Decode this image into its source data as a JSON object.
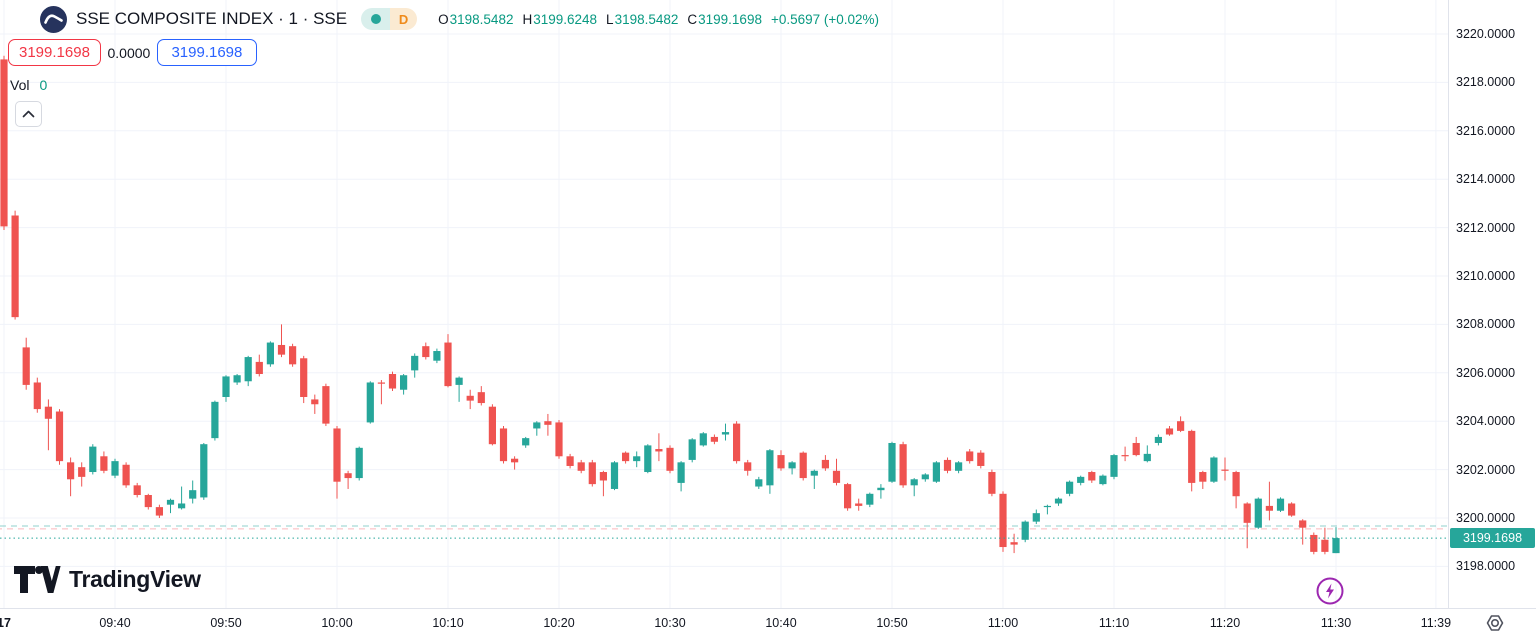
{
  "header": {
    "title": "SSE COMPOSITE INDEX · 1 · SSE",
    "market_status_dot": "open",
    "delayed_badge": "D",
    "ohlc": {
      "o_label": "O",
      "o": "3198.5482",
      "h_label": "H",
      "h": "3199.6248",
      "l_label": "L",
      "l": "3198.5482",
      "c_label": "C",
      "c": "3199.1698",
      "change": "+0.5697 (+0.02%)"
    }
  },
  "trade_panel": {
    "sell_price": "3199.1698",
    "spread": "0.0000",
    "buy_price": "3199.1698"
  },
  "volume": {
    "label": "Vol",
    "value": "0"
  },
  "brand": {
    "name": "TradingView"
  },
  "colors": {
    "up": "#26a69a",
    "down": "#ef5350",
    "text": "#131722",
    "grid": "#f0f3fa",
    "border": "#e0e3eb",
    "value_green": "#089981",
    "sell_red": "#f23645",
    "buy_blue": "#2962ff",
    "tag_bg": "#26a69a",
    "lightning_purple": "#9c27b0"
  },
  "price_axis_tag": "3199.1698",
  "chart_data": {
    "type": "candlestick",
    "symbol": "SSE COMPOSITE INDEX",
    "interval": "1",
    "exchange": "SSE",
    "start_time": "09:30",
    "minutes_per_candle": 1,
    "ylim": [
      3196.9,
      3221.4
    ],
    "grid": true,
    "price_ticks": [
      "3198.0000",
      "3200.0000",
      "3202.0000",
      "3204.0000",
      "3206.0000",
      "3208.0000",
      "3210.0000",
      "3212.0000",
      "3214.0000",
      "3216.0000",
      "3218.0000",
      "3220.0000"
    ],
    "price_tick_values": [
      3198,
      3200,
      3202,
      3204,
      3206,
      3208,
      3210,
      3212,
      3214,
      3216,
      3218,
      3220
    ],
    "time_ticks": [
      {
        "i": 0,
        "label": "17",
        "bold": true
      },
      {
        "i": 10,
        "label": "09:40"
      },
      {
        "i": 20,
        "label": "09:50"
      },
      {
        "i": 30,
        "label": "10:00"
      },
      {
        "i": 40,
        "label": "10:10"
      },
      {
        "i": 50,
        "label": "10:20"
      },
      {
        "i": 60,
        "label": "10:30"
      },
      {
        "i": 70,
        "label": "10:40"
      },
      {
        "i": 80,
        "label": "10:50"
      },
      {
        "i": 90,
        "label": "11:00"
      },
      {
        "i": 100,
        "label": "11:10"
      },
      {
        "i": 110,
        "label": "11:20"
      },
      {
        "i": 120,
        "label": "11:30"
      },
      {
        "i": 129,
        "label": "11:39"
      }
    ],
    "overlay_lines": [
      {
        "price": 3199.67,
        "style": "dashed",
        "color": "rgba(38,166,154,0.5)"
      },
      {
        "price": 3199.55,
        "style": "dashed",
        "color": "rgba(242,54,69,0.35)"
      },
      {
        "price": 3199.1698,
        "style": "dotted",
        "color": "#26a69a",
        "is_current": true
      }
    ],
    "current_price": 3199.1698,
    "candles": [
      [
        3218.95,
        3219.1,
        3211.9,
        3212.05
      ],
      [
        3212.5,
        3212.7,
        3208.2,
        3208.3
      ],
      [
        3207.05,
        3207.45,
        3205.3,
        3205.5
      ],
      [
        3205.6,
        3205.8,
        3204.35,
        3204.5
      ],
      [
        3204.6,
        3204.9,
        3202.8,
        3204.1
      ],
      [
        3204.4,
        3204.5,
        3202.2,
        3202.35
      ],
      [
        3202.3,
        3202.5,
        3200.9,
        3201.6
      ],
      [
        3202.1,
        3202.3,
        3201.3,
        3201.7
      ],
      [
        3201.9,
        3203.05,
        3201.8,
        3202.95
      ],
      [
        3202.55,
        3202.75,
        3201.85,
        3201.95
      ],
      [
        3201.75,
        3202.45,
        3201.65,
        3202.35
      ],
      [
        3202.2,
        3202.3,
        3201.25,
        3201.35
      ],
      [
        3201.35,
        3201.45,
        3200.85,
        3200.95
      ],
      [
        3200.95,
        3201.0,
        3200.35,
        3200.45
      ],
      [
        3200.45,
        3200.55,
        3200.0,
        3200.1
      ],
      [
        3200.55,
        3200.8,
        3200.2,
        3200.75
      ],
      [
        3200.4,
        3201.3,
        3200.35,
        3200.6
      ],
      [
        3200.8,
        3201.55,
        3200.6,
        3201.15
      ],
      [
        3200.85,
        3203.1,
        3200.75,
        3203.05
      ],
      [
        3203.3,
        3204.85,
        3203.2,
        3204.8
      ],
      [
        3205.0,
        3205.9,
        3204.8,
        3205.85
      ],
      [
        3205.6,
        3205.95,
        3205.5,
        3205.9
      ],
      [
        3205.65,
        3206.7,
        3205.45,
        3206.65
      ],
      [
        3206.45,
        3206.75,
        3205.85,
        3205.95
      ],
      [
        3206.35,
        3207.3,
        3206.25,
        3207.25
      ],
      [
        3207.15,
        3208.0,
        3206.65,
        3206.75
      ],
      [
        3207.1,
        3207.2,
        3206.25,
        3206.35
      ],
      [
        3206.6,
        3206.7,
        3204.75,
        3205.0
      ],
      [
        3204.9,
        3205.1,
        3204.3,
        3204.7
      ],
      [
        3205.45,
        3205.55,
        3203.8,
        3203.9
      ],
      [
        3203.7,
        3203.8,
        3200.8,
        3201.5
      ],
      [
        3201.85,
        3201.95,
        3201.2,
        3201.65
      ],
      [
        3201.65,
        3202.95,
        3201.55,
        3202.9
      ],
      [
        3203.95,
        3205.65,
        3203.9,
        3205.6
      ],
      [
        3205.6,
        3205.7,
        3204.7,
        3205.55
      ],
      [
        3205.95,
        3206.05,
        3205.25,
        3205.35
      ],
      [
        3205.3,
        3205.95,
        3205.1,
        3205.9
      ],
      [
        3206.1,
        3206.8,
        3205.8,
        3206.7
      ],
      [
        3207.1,
        3207.25,
        3206.55,
        3206.65
      ],
      [
        3206.5,
        3207.0,
        3206.4,
        3206.9
      ],
      [
        3207.25,
        3207.6,
        3205.4,
        3205.45
      ],
      [
        3205.5,
        3205.85,
        3204.8,
        3205.8
      ],
      [
        3205.05,
        3205.3,
        3204.5,
        3204.85
      ],
      [
        3205.2,
        3205.45,
        3204.65,
        3204.75
      ],
      [
        3204.6,
        3204.7,
        3203.0,
        3203.05
      ],
      [
        3203.7,
        3203.8,
        3202.25,
        3202.35
      ],
      [
        3202.45,
        3202.55,
        3202.0,
        3202.3
      ],
      [
        3203.0,
        3203.35,
        3202.9,
        3203.3
      ],
      [
        3203.7,
        3204.0,
        3203.4,
        3203.95
      ],
      [
        3204.0,
        3204.3,
        3203.4,
        3203.85
      ],
      [
        3203.95,
        3204.05,
        3202.45,
        3202.55
      ],
      [
        3202.55,
        3202.65,
        3202.05,
        3202.15
      ],
      [
        3202.3,
        3202.4,
        3201.85,
        3201.95
      ],
      [
        3202.3,
        3202.4,
        3201.3,
        3201.4
      ],
      [
        3201.9,
        3201.95,
        3200.9,
        3201.55
      ],
      [
        3201.2,
        3202.35,
        3201.15,
        3202.3
      ],
      [
        3202.7,
        3202.75,
        3202.25,
        3202.35
      ],
      [
        3202.35,
        3202.75,
        3202.1,
        3202.55
      ],
      [
        3201.9,
        3203.05,
        3201.85,
        3203.0
      ],
      [
        3202.85,
        3203.5,
        3202.35,
        3202.75
      ],
      [
        3202.9,
        3203.0,
        3201.85,
        3201.95
      ],
      [
        3201.45,
        3202.35,
        3201.1,
        3202.3
      ],
      [
        3202.4,
        3203.3,
        3202.3,
        3203.25
      ],
      [
        3203.0,
        3203.55,
        3202.95,
        3203.5
      ],
      [
        3203.35,
        3203.45,
        3203.05,
        3203.15
      ],
      [
        3203.45,
        3203.9,
        3203.2,
        3203.55
      ],
      [
        3203.9,
        3204.0,
        3202.25,
        3202.35
      ],
      [
        3202.3,
        3202.4,
        3201.75,
        3201.95
      ],
      [
        3201.3,
        3201.7,
        3201.2,
        3201.6
      ],
      [
        3201.35,
        3202.85,
        3201.0,
        3202.8
      ],
      [
        3202.6,
        3202.8,
        3201.95,
        3202.05
      ],
      [
        3202.05,
        3202.35,
        3201.8,
        3202.3
      ],
      [
        3202.7,
        3202.75,
        3201.55,
        3201.65
      ],
      [
        3201.75,
        3202.0,
        3201.2,
        3201.95
      ],
      [
        3202.4,
        3202.6,
        3201.95,
        3202.05
      ],
      [
        3201.95,
        3202.45,
        3201.35,
        3201.45
      ],
      [
        3201.4,
        3201.45,
        3200.3,
        3200.4
      ],
      [
        3200.6,
        3200.8,
        3200.3,
        3200.5
      ],
      [
        3200.55,
        3201.05,
        3200.45,
        3201.0
      ],
      [
        3201.15,
        3201.4,
        3200.8,
        3201.25
      ],
      [
        3201.5,
        3203.15,
        3201.45,
        3203.1
      ],
      [
        3203.05,
        3203.15,
        3201.25,
        3201.35
      ],
      [
        3201.35,
        3201.65,
        3200.9,
        3201.6
      ],
      [
        3201.6,
        3201.85,
        3201.5,
        3201.8
      ],
      [
        3201.5,
        3202.35,
        3201.45,
        3202.3
      ],
      [
        3202.4,
        3202.5,
        3201.85,
        3201.95
      ],
      [
        3201.95,
        3202.35,
        3201.85,
        3202.3
      ],
      [
        3202.75,
        3202.85,
        3202.25,
        3202.35
      ],
      [
        3202.7,
        3202.8,
        3202.05,
        3202.15
      ],
      [
        3201.9,
        3202.0,
        3200.9,
        3201.0
      ],
      [
        3201.0,
        3201.1,
        3198.6,
        3198.8
      ],
      [
        3199.0,
        3199.35,
        3198.55,
        3198.9
      ],
      [
        3199.1,
        3199.9,
        3199.0,
        3199.85
      ],
      [
        3199.85,
        3200.35,
        3199.75,
        3200.2
      ],
      [
        3200.45,
        3200.55,
        3200.15,
        3200.5
      ],
      [
        3200.6,
        3200.85,
        3200.5,
        3200.8
      ],
      [
        3201.0,
        3201.55,
        3200.9,
        3201.5
      ],
      [
        3201.45,
        3201.75,
        3201.35,
        3201.7
      ],
      [
        3201.9,
        3201.95,
        3201.45,
        3201.55
      ],
      [
        3201.4,
        3201.8,
        3201.35,
        3201.75
      ],
      [
        3201.7,
        3202.65,
        3201.6,
        3202.6
      ],
      [
        3202.6,
        3202.95,
        3202.35,
        3202.55
      ],
      [
        3203.1,
        3203.35,
        3202.55,
        3202.6
      ],
      [
        3202.35,
        3203.0,
        3202.3,
        3202.65
      ],
      [
        3203.1,
        3203.45,
        3203.0,
        3203.35
      ],
      [
        3203.7,
        3203.8,
        3203.4,
        3203.45
      ],
      [
        3204.0,
        3204.2,
        3203.55,
        3203.6
      ],
      [
        3203.6,
        3203.65,
        3201.1,
        3201.45
      ],
      [
        3201.9,
        3201.95,
        3201.2,
        3201.5
      ],
      [
        3201.5,
        3202.55,
        3201.45,
        3202.5
      ],
      [
        3202.0,
        3202.5,
        3201.55,
        3201.95
      ],
      [
        3201.9,
        3201.95,
        3200.4,
        3200.9
      ],
      [
        3200.6,
        3200.65,
        3198.75,
        3199.8
      ],
      [
        3199.6,
        3200.85,
        3199.55,
        3200.8
      ],
      [
        3200.5,
        3201.5,
        3199.9,
        3200.3
      ],
      [
        3200.3,
        3200.85,
        3200.25,
        3200.8
      ],
      [
        3200.6,
        3200.65,
        3200.05,
        3200.1
      ],
      [
        3199.9,
        3199.95,
        3198.9,
        3199.6
      ],
      [
        3199.3,
        3199.4,
        3198.5,
        3198.6
      ],
      [
        3199.1,
        3199.6,
        3198.5,
        3198.6
      ],
      [
        3198.5482,
        3199.6248,
        3198.5482,
        3199.1698
      ]
    ]
  }
}
